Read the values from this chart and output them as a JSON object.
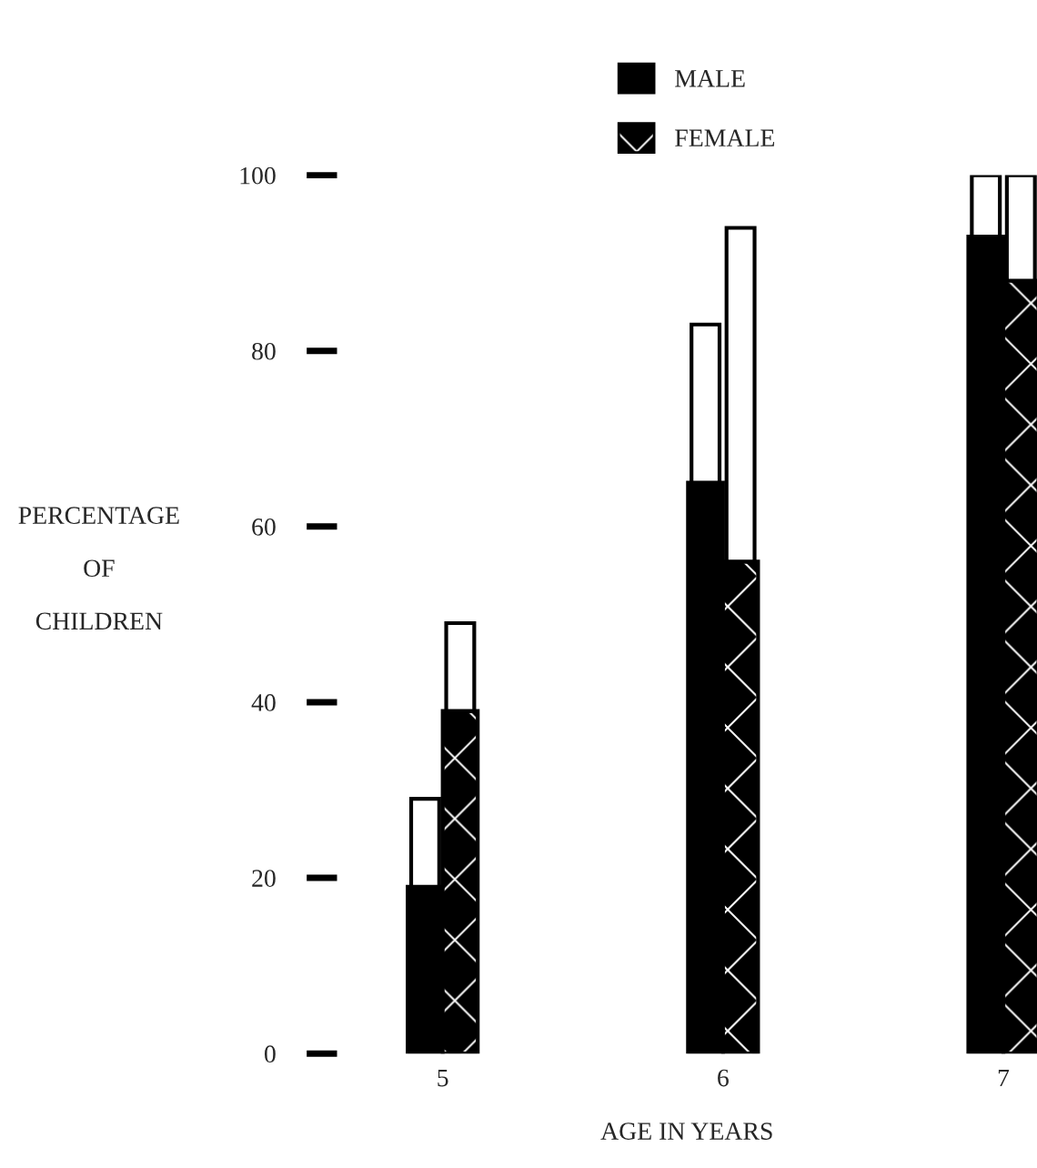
{
  "chart_data": {
    "type": "bar",
    "xlabel": "AGE IN YEARS",
    "ylabel": "PERCENTAGE\n\nOF\n\nCHILDREN",
    "categories": [
      "5",
      "6",
      "7"
    ],
    "series": [
      {
        "name": "MALE",
        "color": "#000000",
        "values": [
          19,
          65,
          93
        ]
      },
      {
        "color": "#ffffff",
        "values": [
          10,
          18,
          7
        ],
        "base": [
          19,
          65,
          93
        ]
      },
      {
        "name": "FEMALE",
        "color": "#000000",
        "values": [
          39,
          56,
          88
        ]
      },
      {
        "color": "#ffffff",
        "values": [
          10,
          38,
          12
        ],
        "base": [
          39,
          56,
          88
        ]
      }
    ],
    "ylim": [
      0,
      100
    ],
    "yticks": [
      0,
      20,
      40,
      60,
      80,
      100
    ],
    "grid": false,
    "legend": "top right"
  }
}
